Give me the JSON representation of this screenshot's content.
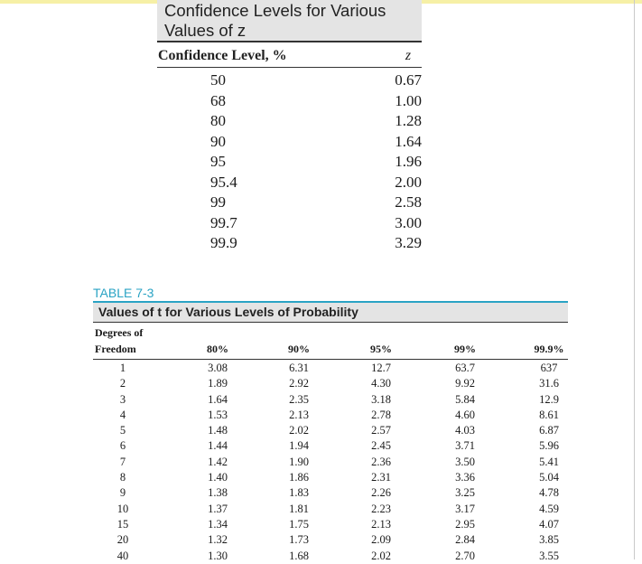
{
  "z_table": {
    "title_line1": "Confidence Levels for Various",
    "title_line2": "Values of z",
    "col_confidence": "Confidence Level, %",
    "col_z": "z",
    "rows": [
      {
        "level": "50",
        "z": "0.67"
      },
      {
        "level": "68",
        "z": "1.00"
      },
      {
        "level": "80",
        "z": "1.28"
      },
      {
        "level": "90",
        "z": "1.64"
      },
      {
        "level": "95",
        "z": "1.96"
      },
      {
        "level": "95.4",
        "z": "2.00"
      },
      {
        "level": "99",
        "z": "2.58"
      },
      {
        "level": "99.7",
        "z": "3.00"
      },
      {
        "level": "99.9",
        "z": "3.29"
      }
    ]
  },
  "t_table": {
    "label": "TABLE 7-3",
    "title": "Values of t for Various Levels of Probability",
    "df_line1": "Degrees of",
    "df_line2": "Freedom",
    "prob_headers": [
      "80%",
      "90%",
      "95%",
      "99%",
      "99.9%"
    ],
    "rows": [
      {
        "df": "1",
        "v": [
          "3.08",
          "6.31",
          "12.7",
          "63.7",
          "637"
        ]
      },
      {
        "df": "2",
        "v": [
          "1.89",
          "2.92",
          "4.30",
          "9.92",
          "31.6"
        ]
      },
      {
        "df": "3",
        "v": [
          "1.64",
          "2.35",
          "3.18",
          "5.84",
          "12.9"
        ]
      },
      {
        "df": "4",
        "v": [
          "1.53",
          "2.13",
          "2.78",
          "4.60",
          "8.61"
        ]
      },
      {
        "df": "5",
        "v": [
          "1.48",
          "2.02",
          "2.57",
          "4.03",
          "6.87"
        ]
      },
      {
        "df": "6",
        "v": [
          "1.44",
          "1.94",
          "2.45",
          "3.71",
          "5.96"
        ]
      },
      {
        "df": "7",
        "v": [
          "1.42",
          "1.90",
          "2.36",
          "3.50",
          "5.41"
        ]
      },
      {
        "df": "8",
        "v": [
          "1.40",
          "1.86",
          "2.31",
          "3.36",
          "5.04"
        ]
      },
      {
        "df": "9",
        "v": [
          "1.38",
          "1.83",
          "2.26",
          "3.25",
          "4.78"
        ]
      },
      {
        "df": "10",
        "v": [
          "1.37",
          "1.81",
          "2.23",
          "3.17",
          "4.59"
        ]
      },
      {
        "df": "15",
        "v": [
          "1.34",
          "1.75",
          "2.13",
          "2.95",
          "4.07"
        ]
      },
      {
        "df": "20",
        "v": [
          "1.32",
          "1.73",
          "2.09",
          "2.84",
          "3.85"
        ]
      },
      {
        "df": "40",
        "v": [
          "1.30",
          "1.68",
          "2.02",
          "2.70",
          "3.55"
        ]
      }
    ]
  },
  "colors": {
    "accent": "#2aa3c4",
    "header_gray": "#e4e4e4"
  }
}
